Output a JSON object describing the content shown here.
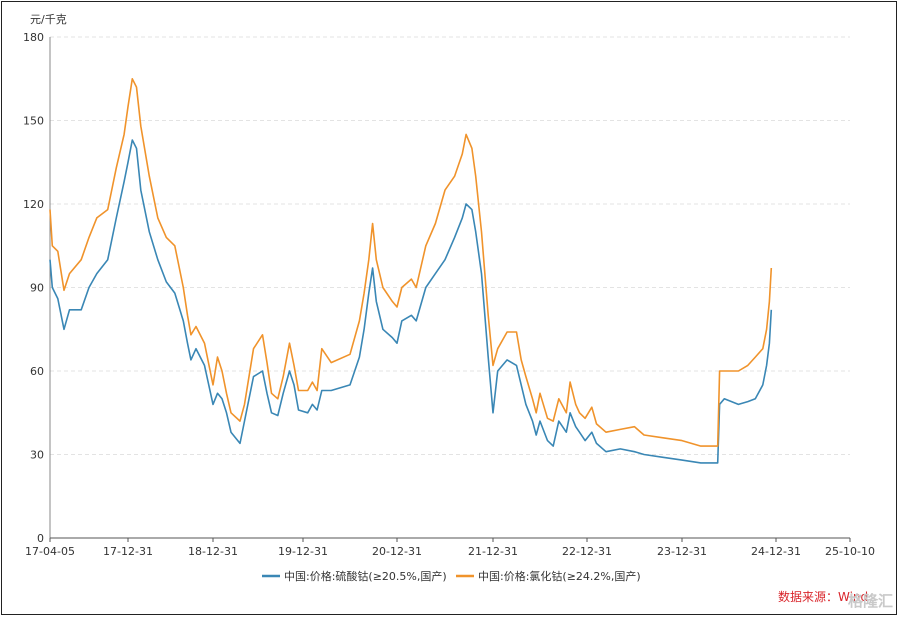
{
  "chart_data": {
    "type": "line",
    "y_unit": "元/千克",
    "ylim": [
      0,
      180
    ],
    "y_ticks": [
      0,
      30,
      60,
      90,
      120,
      150,
      180
    ],
    "x_ticks": [
      "17-04-05",
      "17-12-31",
      "18-12-31",
      "19-12-31",
      "20-12-31",
      "21-12-31",
      "22-12-31",
      "23-12-31",
      "24-12-31",
      "25-10-10"
    ],
    "grid": "horizontal-dashed",
    "legend_position": "bottom",
    "source_text": "数据来源：Wind",
    "watermark": "格隆汇",
    "series": [
      {
        "name": "中国:价格:硫酸钴(≥20.5%,国产)",
        "color": "#3a87b5",
        "points": [
          [
            0,
            100
          ],
          [
            0.03,
            90
          ],
          [
            0.1,
            86
          ],
          [
            0.18,
            75
          ],
          [
            0.25,
            82
          ],
          [
            0.4,
            82
          ],
          [
            0.5,
            90
          ],
          [
            0.6,
            95
          ],
          [
            0.74,
            100
          ],
          [
            0.85,
            115
          ],
          [
            0.95,
            128
          ],
          [
            1.0,
            135
          ],
          [
            1.05,
            143
          ],
          [
            1.1,
            140
          ],
          [
            1.15,
            125
          ],
          [
            1.25,
            110
          ],
          [
            1.35,
            100
          ],
          [
            1.45,
            92
          ],
          [
            1.55,
            88
          ],
          [
            1.65,
            78
          ],
          [
            1.7,
            70
          ],
          [
            1.74,
            64
          ],
          [
            1.8,
            68
          ],
          [
            1.9,
            62
          ],
          [
            2.0,
            48
          ],
          [
            2.05,
            52
          ],
          [
            2.1,
            50
          ],
          [
            2.15,
            45
          ],
          [
            2.2,
            38
          ],
          [
            2.3,
            34
          ],
          [
            2.35,
            42
          ],
          [
            2.45,
            58
          ],
          [
            2.55,
            60
          ],
          [
            2.6,
            52
          ],
          [
            2.65,
            45
          ],
          [
            2.72,
            44
          ],
          [
            2.78,
            52
          ],
          [
            2.85,
            60
          ],
          [
            2.9,
            55
          ],
          [
            2.95,
            46
          ],
          [
            3.05,
            45
          ],
          [
            3.1,
            48
          ],
          [
            3.15,
            46
          ],
          [
            3.2,
            53
          ],
          [
            3.3,
            53
          ],
          [
            3.5,
            55
          ],
          [
            3.6,
            65
          ],
          [
            3.65,
            75
          ],
          [
            3.7,
            88
          ],
          [
            3.74,
            97
          ],
          [
            3.78,
            85
          ],
          [
            3.85,
            75
          ],
          [
            3.95,
            72
          ],
          [
            4.0,
            70
          ],
          [
            4.05,
            78
          ],
          [
            4.15,
            80
          ],
          [
            4.2,
            78
          ],
          [
            4.3,
            90
          ],
          [
            4.4,
            95
          ],
          [
            4.5,
            100
          ],
          [
            4.6,
            108
          ],
          [
            4.68,
            115
          ],
          [
            4.72,
            120
          ],
          [
            4.78,
            118
          ],
          [
            4.82,
            110
          ],
          [
            4.88,
            95
          ],
          [
            4.95,
            65
          ],
          [
            5.0,
            45
          ],
          [
            5.05,
            60
          ],
          [
            5.15,
            64
          ],
          [
            5.25,
            62
          ],
          [
            5.3,
            55
          ],
          [
            5.35,
            48
          ],
          [
            5.42,
            42
          ],
          [
            5.46,
            37
          ],
          [
            5.5,
            42
          ],
          [
            5.58,
            35
          ],
          [
            5.64,
            33
          ],
          [
            5.7,
            42
          ],
          [
            5.78,
            38
          ],
          [
            5.82,
            45
          ],
          [
            5.88,
            40
          ],
          [
            5.92,
            38
          ],
          [
            5.98,
            35
          ],
          [
            6.05,
            38
          ],
          [
            6.1,
            34
          ],
          [
            6.2,
            31
          ],
          [
            6.35,
            32
          ],
          [
            6.5,
            31
          ],
          [
            6.6,
            30
          ],
          [
            6.8,
            29
          ],
          [
            7.0,
            28
          ],
          [
            7.2,
            27
          ],
          [
            7.38,
            27
          ],
          [
            7.4,
            48
          ],
          [
            7.45,
            50
          ],
          [
            7.6,
            48
          ],
          [
            7.7,
            49
          ],
          [
            7.78,
            50
          ],
          [
            7.86,
            55
          ],
          [
            7.9,
            62
          ],
          [
            7.93,
            70
          ],
          [
            7.95,
            82
          ]
        ]
      },
      {
        "name": "中国:价格:氯化钴(≥24.2%,国产)",
        "color": "#f0932b",
        "points": [
          [
            0,
            118
          ],
          [
            0.03,
            105
          ],
          [
            0.1,
            103
          ],
          [
            0.18,
            89
          ],
          [
            0.25,
            95
          ],
          [
            0.4,
            100
          ],
          [
            0.5,
            108
          ],
          [
            0.6,
            115
          ],
          [
            0.74,
            118
          ],
          [
            0.85,
            133
          ],
          [
            0.95,
            145
          ],
          [
            1.0,
            155
          ],
          [
            1.05,
            165
          ],
          [
            1.1,
            162
          ],
          [
            1.15,
            148
          ],
          [
            1.25,
            130
          ],
          [
            1.35,
            115
          ],
          [
            1.45,
            108
          ],
          [
            1.55,
            105
          ],
          [
            1.65,
            90
          ],
          [
            1.7,
            80
          ],
          [
            1.74,
            73
          ],
          [
            1.8,
            76
          ],
          [
            1.9,
            70
          ],
          [
            2.0,
            55
          ],
          [
            2.05,
            65
          ],
          [
            2.1,
            60
          ],
          [
            2.15,
            52
          ],
          [
            2.2,
            45
          ],
          [
            2.3,
            42
          ],
          [
            2.35,
            48
          ],
          [
            2.45,
            68
          ],
          [
            2.55,
            73
          ],
          [
            2.6,
            63
          ],
          [
            2.65,
            52
          ],
          [
            2.72,
            50
          ],
          [
            2.78,
            58
          ],
          [
            2.85,
            70
          ],
          [
            2.9,
            62
          ],
          [
            2.95,
            53
          ],
          [
            3.05,
            53
          ],
          [
            3.1,
            56
          ],
          [
            3.15,
            53
          ],
          [
            3.2,
            68
          ],
          [
            3.3,
            63
          ],
          [
            3.5,
            66
          ],
          [
            3.6,
            78
          ],
          [
            3.65,
            88
          ],
          [
            3.7,
            100
          ],
          [
            3.74,
            113
          ],
          [
            3.78,
            100
          ],
          [
            3.85,
            90
          ],
          [
            3.95,
            85
          ],
          [
            4.0,
            83
          ],
          [
            4.05,
            90
          ],
          [
            4.15,
            93
          ],
          [
            4.2,
            90
          ],
          [
            4.3,
            105
          ],
          [
            4.4,
            113
          ],
          [
            4.5,
            125
          ],
          [
            4.6,
            130
          ],
          [
            4.68,
            138
          ],
          [
            4.72,
            145
          ],
          [
            4.78,
            140
          ],
          [
            4.82,
            130
          ],
          [
            4.88,
            110
          ],
          [
            4.95,
            80
          ],
          [
            5.0,
            62
          ],
          [
            5.05,
            68
          ],
          [
            5.15,
            74
          ],
          [
            5.25,
            74
          ],
          [
            5.3,
            64
          ],
          [
            5.35,
            58
          ],
          [
            5.42,
            50
          ],
          [
            5.46,
            45
          ],
          [
            5.5,
            52
          ],
          [
            5.58,
            43
          ],
          [
            5.64,
            42
          ],
          [
            5.7,
            50
          ],
          [
            5.78,
            45
          ],
          [
            5.82,
            56
          ],
          [
            5.88,
            48
          ],
          [
            5.92,
            45
          ],
          [
            5.98,
            43
          ],
          [
            6.05,
            47
          ],
          [
            6.1,
            41
          ],
          [
            6.2,
            38
          ],
          [
            6.35,
            39
          ],
          [
            6.5,
            40
          ],
          [
            6.6,
            37
          ],
          [
            6.8,
            36
          ],
          [
            7.0,
            35
          ],
          [
            7.2,
            33
          ],
          [
            7.38,
            33
          ],
          [
            7.4,
            60
          ],
          [
            7.45,
            60
          ],
          [
            7.6,
            60
          ],
          [
            7.7,
            62
          ],
          [
            7.78,
            65
          ],
          [
            7.86,
            68
          ],
          [
            7.9,
            75
          ],
          [
            7.93,
            85
          ],
          [
            7.95,
            97
          ]
        ]
      }
    ]
  }
}
